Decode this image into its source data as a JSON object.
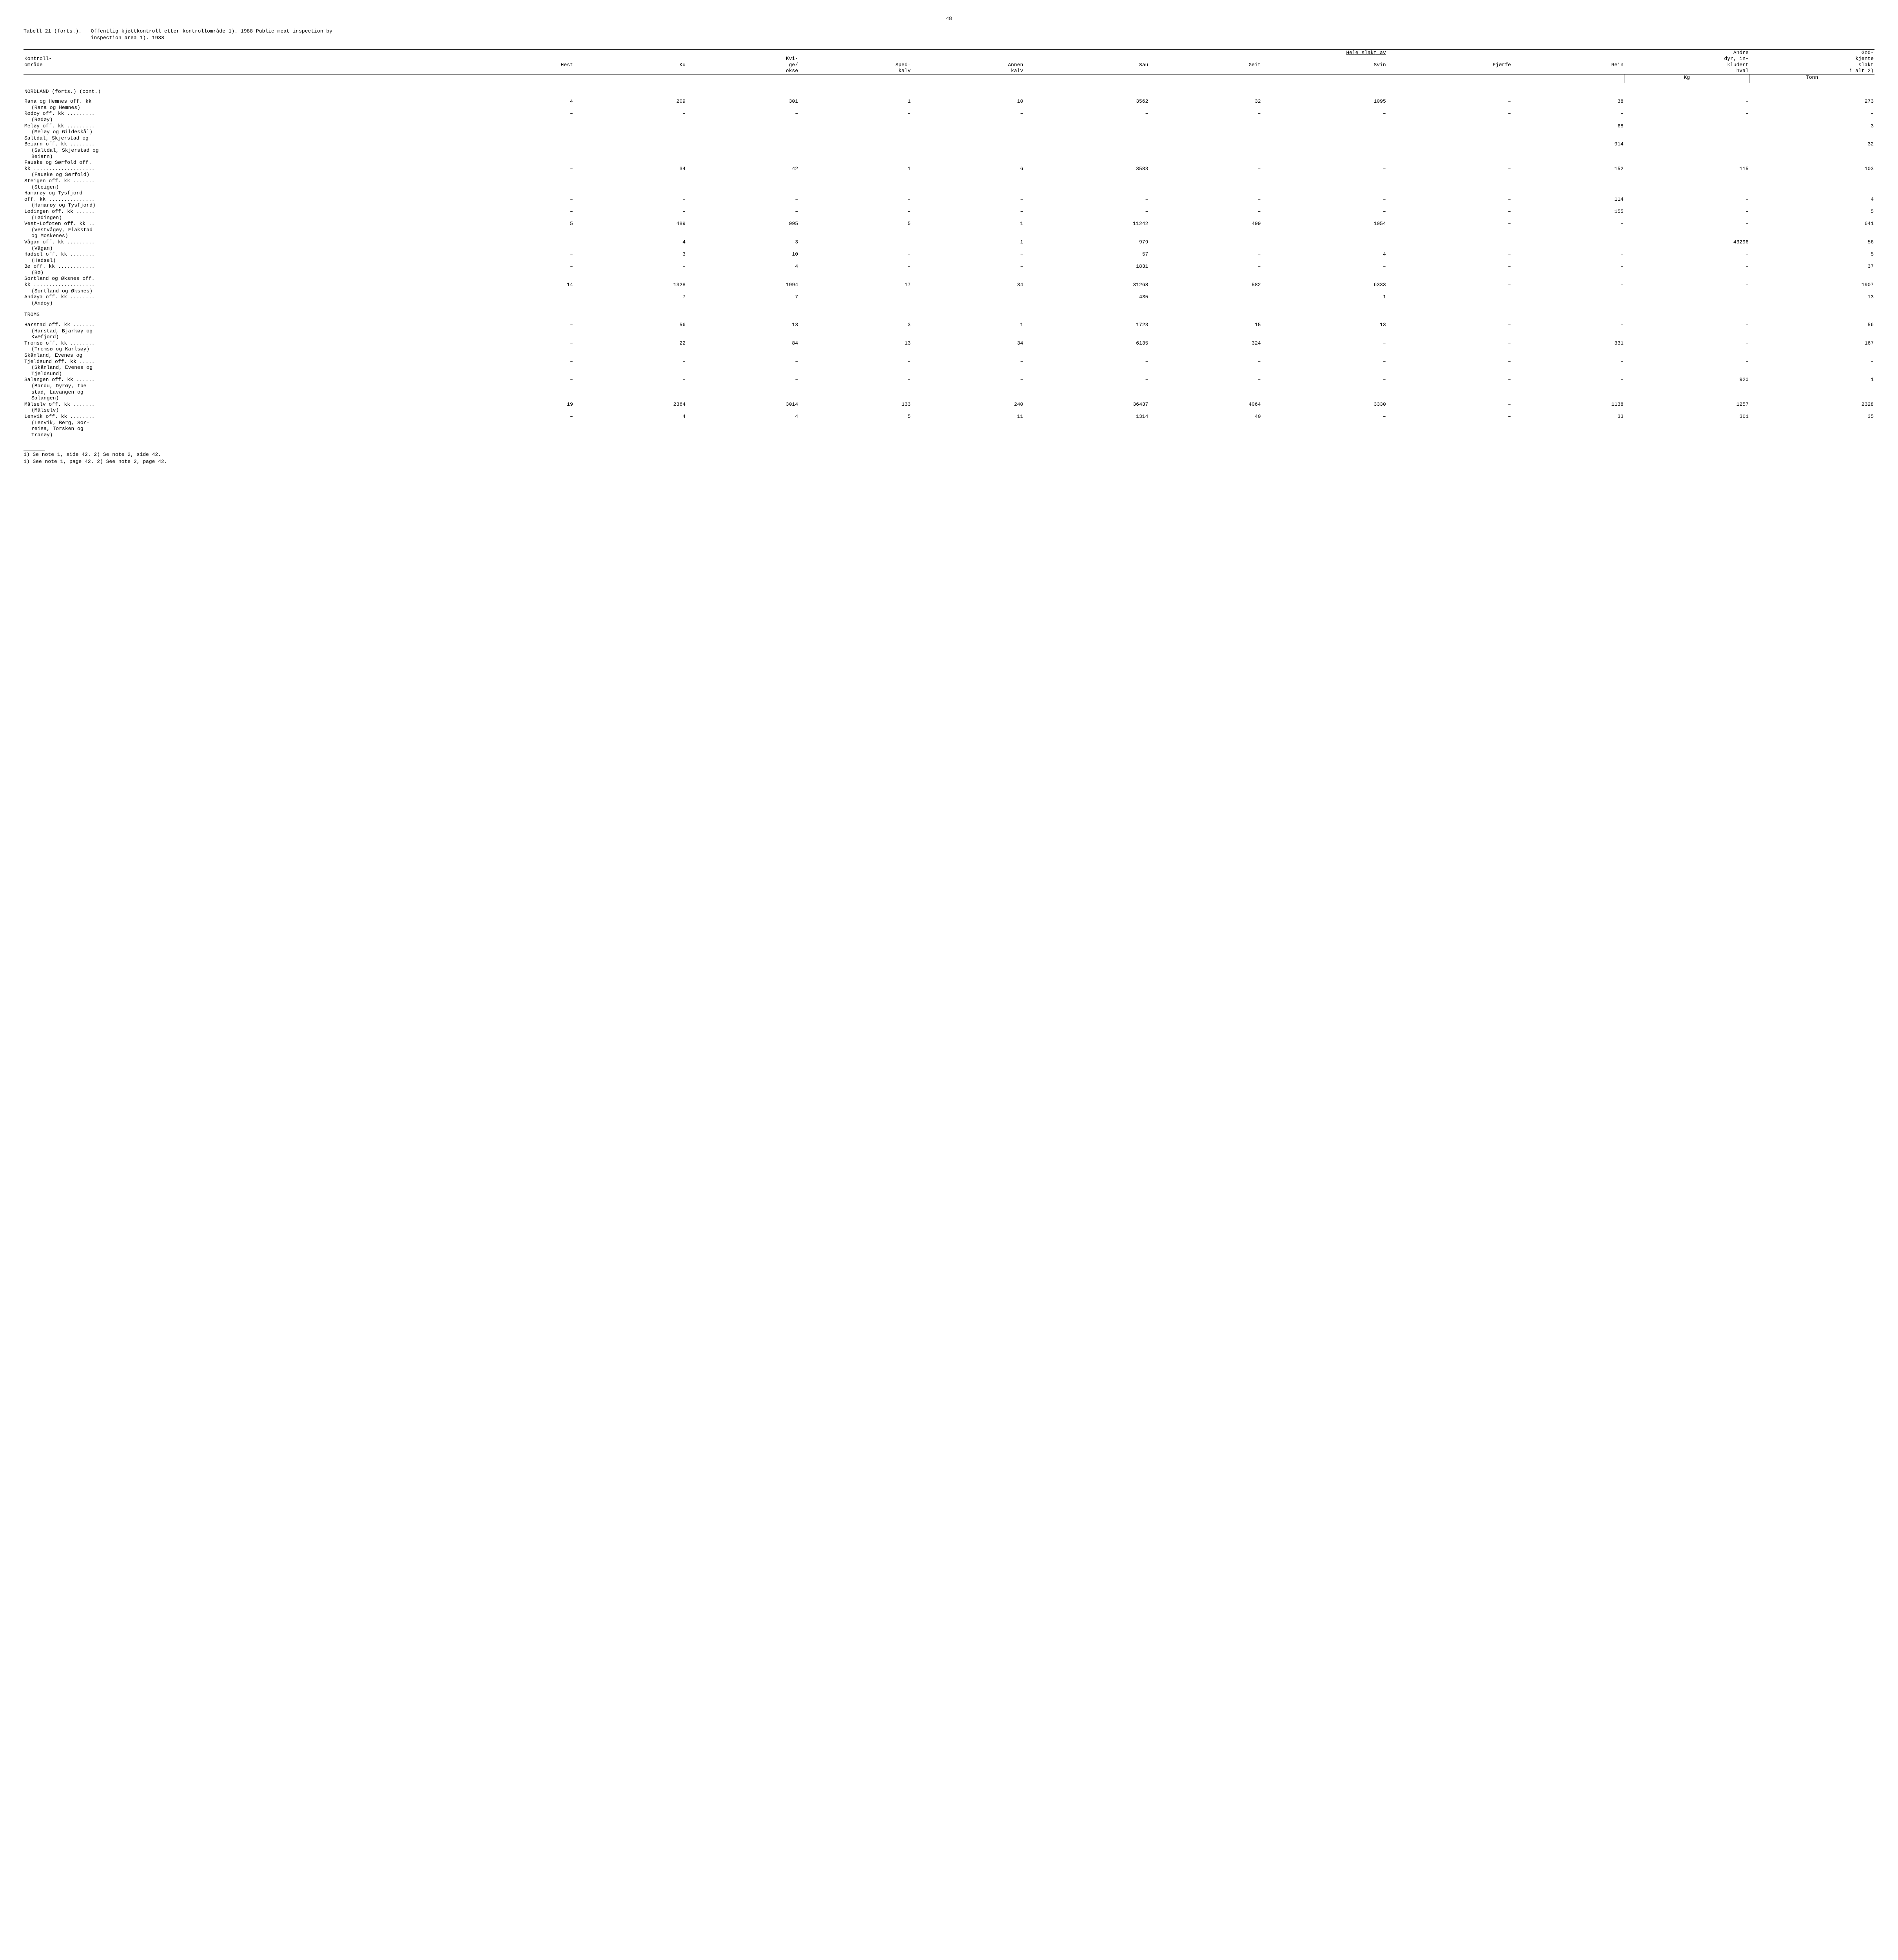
{
  "page_number": "48",
  "caption": {
    "prefix": "Tabell 21 (forts.).",
    "line1": "Offentlig kjøttkontroll etter kontrollområde 1). 1988   Public meat inspection by",
    "line2": "inspection area 1). 1988"
  },
  "headers": {
    "kontroll": "Kontroll-",
    "omrade": "område",
    "hele_slakt": "Hele slakt av",
    "hest": "Hest",
    "ku": "Ku",
    "kvi": "Kvi-",
    "ge": "ge/",
    "okse": "okse",
    "sped": "Sped-",
    "kalv1": "kalv",
    "annen": "Annen",
    "kalv2": "kalv",
    "sau": "Sau",
    "geit": "Geit",
    "svin": "Svin",
    "fjorfe": "Fjørfe",
    "rein": "Rein",
    "andre": "Andre",
    "dyr_in": "dyr, in-",
    "kludert": "kludert",
    "hval": "hval",
    "god": "God-",
    "kjente": "kjente",
    "slakt": "slakt",
    "ialt": "i alt 2)",
    "kg": "Kg",
    "tonn": "Tonn"
  },
  "sections": [
    {
      "title": "NORDLAND (forts.) (cont.)"
    }
  ],
  "rows_nordland": [
    {
      "label": "Rana og Hemnes off. kk",
      "sub": "(Rana og Hemnes)",
      "v": [
        "4",
        "209",
        "301",
        "1",
        "10",
        "3562",
        "32",
        "1095",
        "–",
        "38",
        "–",
        "273"
      ]
    },
    {
      "label": "Rødøy off. kk .........",
      "sub": "(Rødøy)",
      "v": [
        "–",
        "–",
        "–",
        "–",
        "–",
        "–",
        "–",
        "–",
        "–",
        "–",
        "–",
        "–"
      ]
    },
    {
      "label": "Meløy off. kk .........",
      "sub": "(Meløy og Gildeskål)",
      "v": [
        "–",
        "–",
        "–",
        "–",
        "–",
        "–",
        "–",
        "–",
        "–",
        "68",
        "–",
        "3"
      ]
    },
    {
      "label": "Saltdal, Skjerstad og",
      "label2": "Beiarn off. kk ........",
      "sub": "(Saltdal, Skjerstad og",
      "sub2": "Beiarn)",
      "v": [
        "–",
        "–",
        "–",
        "–",
        "–",
        "–",
        "–",
        "–",
        "–",
        "914",
        "–",
        "32"
      ]
    },
    {
      "label": "Fauske og Sørfold off.",
      "label2": "kk ....................",
      "sub": "(Fauske og Sørfold)",
      "v": [
        "–",
        "34",
        "42",
        "1",
        "6",
        "3583",
        "–",
        "–",
        "–",
        "152",
        "115",
        "103"
      ]
    },
    {
      "label": "Steigen off. kk .......",
      "sub": "(Steigen)",
      "v": [
        "–",
        "–",
        "–",
        "–",
        "–",
        "–",
        "–",
        "–",
        "–",
        "–",
        "–",
        "–"
      ]
    },
    {
      "label": "Hamarøy og Tysfjord",
      "label2": "off. kk ...............",
      "sub": "(Hamarøy og Tysfjord)",
      "v": [
        "–",
        "–",
        "–",
        "–",
        "–",
        "–",
        "–",
        "–",
        "–",
        "114",
        "–",
        "4"
      ]
    },
    {
      "label": "Lødingen off. kk ......",
      "sub": "(Lødingen)",
      "v": [
        "–",
        "–",
        "–",
        "–",
        "–",
        "–",
        "–",
        "–",
        "–",
        "155",
        "–",
        "5"
      ]
    },
    {
      "label": "Vest-Lofoten off. kk ..",
      "sub": "(Vestvågøy, Flakstad",
      "sub2": "og Moskenes)",
      "v": [
        "5",
        "489",
        "995",
        "5",
        "1",
        "11242",
        "499",
        "1054",
        "–",
        "–",
        "–",
        "641"
      ]
    },
    {
      "label": "Vågan off. kk .........",
      "sub": "(Vågan)",
      "v": [
        "–",
        "4",
        "3",
        "–",
        "1",
        "979",
        "–",
        "–",
        "–",
        "–",
        "43296",
        "56"
      ]
    },
    {
      "label": "Hadsel off. kk ........",
      "sub": "(Hadsel)",
      "v": [
        "–",
        "3",
        "10",
        "–",
        "–",
        "57",
        "–",
        "4",
        "–",
        "–",
        "–",
        "5"
      ]
    },
    {
      "label": "Bø off. kk ............",
      "sub": "(Bø)",
      "v": [
        "–",
        "–",
        "4",
        "–",
        "–",
        "1831",
        "–",
        "–",
        "–",
        "–",
        "–",
        "37"
      ]
    },
    {
      "label": "Sortland og Øksnes off.",
      "label2": "kk ....................",
      "sub": "(Sortland og Øksnes)",
      "v": [
        "14",
        "1328",
        "1994",
        "17",
        "34",
        "31268",
        "582",
        "6333",
        "–",
        "–",
        "–",
        "1907"
      ]
    },
    {
      "label": "Andøya off. kk ........",
      "sub": "(Andøy)",
      "v": [
        "–",
        "7",
        "7",
        "–",
        "–",
        "435",
        "–",
        "1",
        "–",
        "–",
        "–",
        "13"
      ]
    }
  ],
  "section_troms": "TROMS",
  "rows_troms": [
    {
      "label": "Harstad off. kk .......",
      "sub": "(Harstad, Bjarkøy og",
      "sub2": "Kvæfjord)",
      "v": [
        "–",
        "56",
        "13",
        "3",
        "1",
        "1723",
        "15",
        "13",
        "–",
        "–",
        "–",
        "56"
      ]
    },
    {
      "label": "Tromsø off. kk ........",
      "sub": "(Tromsø og Karlsøy)",
      "v": [
        "–",
        "22",
        "84",
        "13",
        "34",
        "6135",
        "324",
        "–",
        "–",
        "331",
        "–",
        "167"
      ]
    },
    {
      "label": "Skånland, Evenes og",
      "label2": "Tjeldsund off. kk .....",
      "sub": "(Skånland, Evenes og",
      "sub2": "Tjeldsund)",
      "v": [
        "–",
        "–",
        "–",
        "–",
        "–",
        "–",
        "–",
        "–",
        "–",
        "–",
        "–",
        "–"
      ]
    },
    {
      "label": "Salangen off. kk ......",
      "sub": "(Bardu, Dyrøy, Ibe-",
      "sub2": "stad, Lavangen og",
      "sub3": "Salangen)",
      "v": [
        "–",
        "–",
        "–",
        "–",
        "–",
        "–",
        "–",
        "–",
        "–",
        "–",
        "920",
        "1"
      ]
    },
    {
      "label": "Målselv off. kk .......",
      "sub": "(Målselv)",
      "v": [
        "19",
        "2364",
        "3014",
        "133",
        "240",
        "36437",
        "4064",
        "3330",
        "–",
        "1138",
        "1257",
        "2328"
      ]
    },
    {
      "label": "Lenvik off. kk ........",
      "sub": "(Lenvik, Berg, Sør-",
      "sub2": "reisa, Torsken og",
      "sub3": "Tranøy)",
      "v": [
        "–",
        "4",
        "4",
        "5",
        "11",
        "1314",
        "40",
        "–",
        "–",
        "33",
        "301",
        "35"
      ]
    }
  ],
  "footnotes": {
    "no": "1) Se note 1, side 42.  2) Se note 2, side 42.",
    "en": "1) See note 1, page 42.  2) See note 2, page 42."
  }
}
